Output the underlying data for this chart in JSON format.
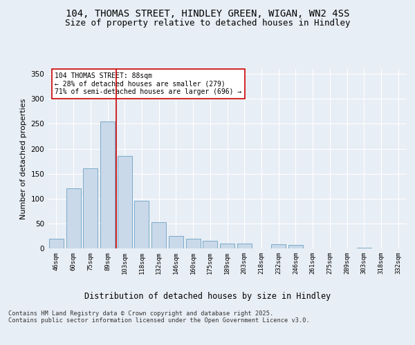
{
  "title": "104, THOMAS STREET, HINDLEY GREEN, WIGAN, WN2 4SS",
  "subtitle": "Size of property relative to detached houses in Hindley",
  "xlabel": "Distribution of detached houses by size in Hindley",
  "ylabel": "Number of detached properties",
  "categories": [
    "46sqm",
    "60sqm",
    "75sqm",
    "89sqm",
    "103sqm",
    "118sqm",
    "132sqm",
    "146sqm",
    "160sqm",
    "175sqm",
    "189sqm",
    "203sqm",
    "218sqm",
    "232sqm",
    "246sqm",
    "261sqm",
    "275sqm",
    "289sqm",
    "303sqm",
    "318sqm",
    "332sqm"
  ],
  "values": [
    20,
    120,
    160,
    255,
    185,
    95,
    52,
    25,
    20,
    15,
    10,
    10,
    0,
    8,
    7,
    0,
    0,
    0,
    2,
    0,
    0
  ],
  "bar_color": "#c9d9ea",
  "bar_edge_color": "#7aaac8",
  "vline_x": 3.5,
  "vline_color": "#cc0000",
  "annotation_text": "104 THOMAS STREET: 88sqm\n← 28% of detached houses are smaller (279)\n71% of semi-detached houses are larger (696) →",
  "annotation_box_color": "#ffffff",
  "annotation_box_edge": "#cc0000",
  "ylim": [
    0,
    360
  ],
  "yticks": [
    0,
    50,
    100,
    150,
    200,
    250,
    300,
    350
  ],
  "bg_color": "#e8eef5",
  "plot_bg_color": "#e8eef5",
  "footer_text": "Contains HM Land Registry data © Crown copyright and database right 2025.\nContains public sector information licensed under the Open Government Licence v3.0.",
  "title_fontsize": 10,
  "subtitle_fontsize": 9,
  "xlabel_fontsize": 8.5,
  "ylabel_fontsize": 8
}
